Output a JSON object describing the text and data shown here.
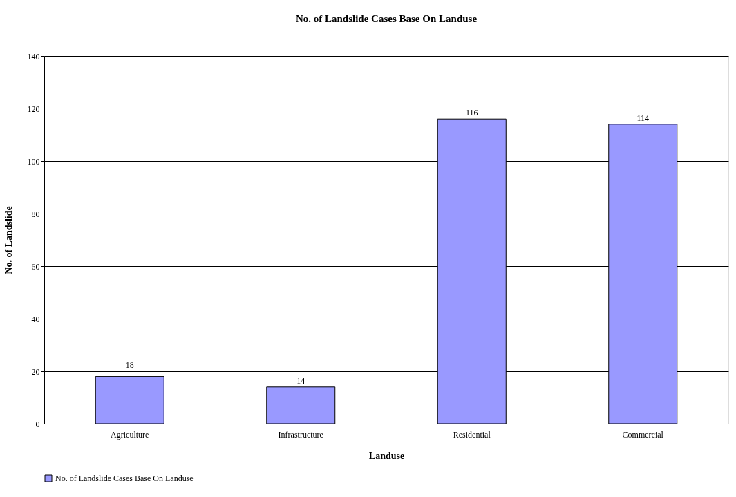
{
  "chart_data": {
    "type": "bar",
    "title": "No. of Landslide Cases Base On Landuse",
    "xlabel": "Landuse",
    "ylabel": "No. of Landslide",
    "categories": [
      "Agriculture",
      "Infrastructure",
      "Residential",
      "Commercial"
    ],
    "series": [
      {
        "name": "No. of Landslide Cases Base On Landuse",
        "color": "#9999ff",
        "values": [
          18,
          14,
          116,
          114
        ]
      }
    ],
    "ylim": [
      0,
      140
    ],
    "yticks": [
      0,
      20,
      40,
      60,
      80,
      100,
      120,
      140
    ],
    "grid": "y",
    "legend": "bottom",
    "data_labels": true
  }
}
